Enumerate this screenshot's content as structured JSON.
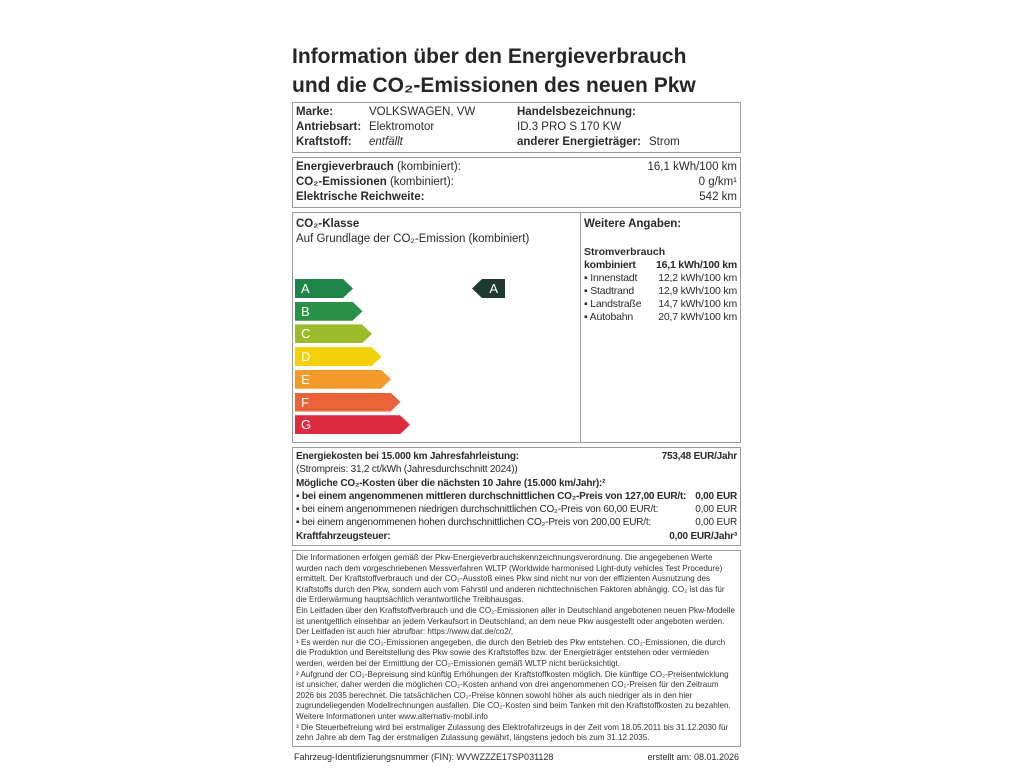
{
  "title": {
    "line1": "Information über den Energieverbrauch",
    "line2": "und die CO₂-Emissionen des neuen Pkw"
  },
  "vehicle": {
    "marke_label": "Marke:",
    "marke": "VOLKSWAGEN, VW",
    "antrieb_label": "Antriebsart:",
    "antrieb": "Elektromotor",
    "kraftstoff_label": "Kraftstoff:",
    "kraftstoff": "entfällt",
    "handel_label": "Handelsbezeichnung:",
    "handel": "ID.3 PRO S 170 KW",
    "energietraeger_label": "anderer Energieträger:",
    "energietraeger": "Strom"
  },
  "consumption": {
    "energy_label": "Energieverbrauch",
    "energy_suffix": " (kombiniert):",
    "energy": "16,1 kWh/100 km",
    "co2_label": "CO₂-Emissionen",
    "co2_suffix": " (kombiniert):",
    "co2": "0 g/km¹",
    "range_label": "Elektrische Reichweite:",
    "range": "542 km"
  },
  "co2class": {
    "heading": "CO₂-Klasse",
    "subheading": "Auf Grundlage der CO₂-Emission (kombiniert)",
    "classes": [
      {
        "letter": "A",
        "color": "#1e8449"
      },
      {
        "letter": "B",
        "color": "#2a9148"
      },
      {
        "letter": "C",
        "color": "#9cbb2a"
      },
      {
        "letter": "D",
        "color": "#f2d10a"
      },
      {
        "letter": "E",
        "color": "#f39a2a"
      },
      {
        "letter": "F",
        "color": "#e8633a"
      },
      {
        "letter": "G",
        "color": "#dc2a3e"
      }
    ],
    "current": "A"
  },
  "further": {
    "heading": "Weitere Angaben:",
    "sub": "Stromverbrauch",
    "combined_label": "kombiniert",
    "combined": "16,1 kWh/100 km",
    "items": [
      {
        "label": "▪ Innenstadt",
        "value": "12,2 kWh/100 km"
      },
      {
        "label": "▪ Stadtrand",
        "value": "12,9 kWh/100 km"
      },
      {
        "label": "▪ Landstraße",
        "value": "14,7 kWh/100 km"
      },
      {
        "label": "▪ Autobahn",
        "value": "20,7 kWh/100 km"
      }
    ]
  },
  "costs": {
    "energy_label": "Energiekosten bei 15.000 km Jahresfahrleistung:",
    "energy": "753,48 EUR/Jahr",
    "price_note": "(Strompreis: 31,2 ct/kWh (Jahresdurchschnitt 2024))",
    "co2_heading": "Mögliche CO₂-Kosten über die nächsten 10 Jahre (15.000 km/Jahr):²",
    "mid_label": "▪ bei einem angenommenen mittleren durchschnittlichen CO₂-Preis von 127,00 EUR/t:",
    "mid": "0,00 EUR",
    "low_label": "▪ bei einem angenommenen niedrigen durchschnittlichen CO₂-Preis von 60,00 EUR/t:",
    "low": "0,00 EUR",
    "high_label": "▪ bei einem angenommenen hohen durchschnittlichen CO₂-Preis von 200,00 EUR/t:",
    "high": "0,00 EUR",
    "tax_label": "Kraftfahrzeugsteuer:",
    "tax": "0,00 EUR/Jahr³"
  },
  "footnotes": {
    "p1": "Die Informationen erfolgen gemäß der Pkw-Energieverbrauchskennzeichnungsverordnung. Die angegebenen Werte wurden nach dem vorgeschriebenen Messverfahren WLTP (Worldwide harmonised Light-duty vehicles Test Procedure) ermittelt. Der Kraftstoffverbrauch und der CO₂-Ausstoß eines Pkw sind nicht nur von der effizienten Ausnutzung des Kraftstoffs durch den Pkw, sondern auch vom Fahrstil und anderen nichttechnischen Faktoren abhängig. CO₂ ist das für die Erderwärmung hauptsächlich verantwortliche Treibhausgas.",
    "p2": "Ein Leitfaden über den Kraftstoffverbrauch und die CO₂-Emissionen aller in Deutschland angebotenen neuen Pkw-Modelle ist unentgeltlich einsehbar an jedem Verkaufsort in Deutschland, an dem neue Pkw ausgestellt oder angeboten werden. Der Leitfaden ist auch hier abrufbar: https://www.dat.de/co2/.",
    "p3": "¹ Es werden nur die CO₂-Emissionen angegeben, die durch den Betrieb des Pkw entstehen. CO₂-Emissionen, die durch die Produktion und Bereitstellung des Pkw sowie des Kraftstoffes bzw. der Energieträger entstehen oder vermieden werden, werden bei der Ermittlung der CO₂-Emissionen gemäß WLTP nicht berücksichtigt.",
    "p4": "² Aufgrund der CO₂-Bepreisung sind künftig Erhöhungen der Kraftstoffkosten möglich. Die künftige CO₂-Preisentwicklung ist unsicher, daher werden die möglichen CO₂-Kosten anhand von drei angenommenen CO₂-Preisen für den Zeitraum 2026 bis 2035 berechnet. Die tatsächlichen CO₂-Preise können sowohl höher als auch niedriger als in den hier zugrundeliegenden Modellrechnungen ausfallen. Die CO₂-Kosten sind beim Tanken mit den Kraftstoffkosten zu bezahlen. Weitere Informationen unter www.alternativ-mobil.info",
    "p5": "³ Die Steuerbefreiung wird bei erstmaliger Zulassung des Elektrofahrzeugs in der Zeit vom 18.05.2011 bis 31.12.2030 für zehn Jahre ab dem Tag der erstmaligen Zulassung gewährt, längstens jedoch bis zum 31.12.2035."
  },
  "footer": {
    "fin": "Fahrzeug-Identifizierungsnummer (FIN): WVWZZZE17SP031128",
    "date": "erstellt am: 08.01.2026"
  }
}
